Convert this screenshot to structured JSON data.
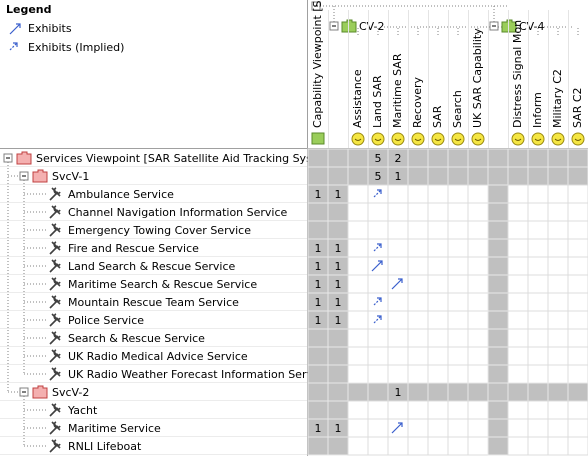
{
  "legend": {
    "title": "Legend",
    "items": [
      "Exhibits",
      "Exhibits (Implied)"
    ]
  },
  "columns": [
    {
      "label": "Capability Viewpoint [S"
    },
    {
      "group": "CV-2"
    },
    {
      "label": "Assistance"
    },
    {
      "label": "Land SAR"
    },
    {
      "label": "Maritime SAR"
    },
    {
      "label": "Recovery"
    },
    {
      "label": "SAR"
    },
    {
      "label": "Search"
    },
    {
      "label": "UK SAR Capability"
    },
    {
      "group": "CV-4"
    },
    {
      "label": "Distress Signal Mon"
    },
    {
      "label": "Inform"
    },
    {
      "label": "Military C2"
    },
    {
      "label": "SAR C2"
    }
  ],
  "rows": [
    {
      "label": "Services Viewpoint [SAR Satellite Aid Tracking System]",
      "level": 0,
      "cells": [
        null,
        null,
        null,
        5,
        2,
        null,
        null,
        null,
        null,
        null,
        null,
        null,
        null,
        null
      ]
    },
    {
      "label": "SvcV-1",
      "level": 1,
      "cells": [
        null,
        null,
        null,
        5,
        1,
        null,
        null,
        null,
        null,
        null,
        null,
        null,
        null,
        null
      ]
    },
    {
      "label": "Ambulance Service",
      "level": 2,
      "cells": [
        1,
        1,
        null,
        "Exhibits (Implied)",
        null,
        null,
        null,
        null,
        null,
        null,
        null,
        null,
        null,
        null
      ]
    },
    {
      "label": "Channel Navigation Information Service",
      "level": 2,
      "cells": [
        null,
        null,
        null,
        null,
        null,
        null,
        null,
        null,
        null,
        null,
        null,
        null,
        null,
        null
      ]
    },
    {
      "label": "Emergency Towing Cover Service",
      "level": 2,
      "cells": [
        null,
        null,
        null,
        null,
        null,
        null,
        null,
        null,
        null,
        null,
        null,
        null,
        null,
        null
      ]
    },
    {
      "label": "Fire and Rescue Service",
      "level": 2,
      "cells": [
        1,
        1,
        null,
        "Exhibits (Implied)",
        null,
        null,
        null,
        null,
        null,
        null,
        null,
        null,
        null,
        null
      ]
    },
    {
      "label": "Land Search & Rescue Service",
      "level": 2,
      "cells": [
        1,
        1,
        null,
        "Exhibits",
        null,
        null,
        null,
        null,
        null,
        null,
        null,
        null,
        null,
        null
      ]
    },
    {
      "label": "Maritime Search & Rescue Service",
      "level": 2,
      "cells": [
        1,
        1,
        null,
        null,
        "Exhibits",
        null,
        null,
        null,
        null,
        null,
        null,
        null,
        null,
        null
      ]
    },
    {
      "label": "Mountain Rescue Team Service",
      "level": 2,
      "cells": [
        1,
        1,
        null,
        "Exhibits (Implied)",
        null,
        null,
        null,
        null,
        null,
        null,
        null,
        null,
        null,
        null
      ]
    },
    {
      "label": "Police Service",
      "level": 2,
      "cells": [
        1,
        1,
        null,
        "Exhibits (Implied)",
        null,
        null,
        null,
        null,
        null,
        null,
        null,
        null,
        null,
        null
      ]
    },
    {
      "label": "Search & Rescue Service",
      "level": 2,
      "cells": [
        null,
        null,
        null,
        null,
        null,
        null,
        null,
        null,
        null,
        null,
        null,
        null,
        null,
        null
      ]
    },
    {
      "label": "UK Radio Medical Advice Service",
      "level": 2,
      "cells": [
        null,
        null,
        null,
        null,
        null,
        null,
        null,
        null,
        null,
        null,
        null,
        null,
        null,
        null
      ]
    },
    {
      "label": "UK Radio Weather Forecast Information Service",
      "level": 2,
      "cells": [
        null,
        null,
        null,
        null,
        null,
        null,
        null,
        null,
        null,
        null,
        null,
        null,
        null,
        null
      ]
    },
    {
      "label": "SvcV-2",
      "level": 1,
      "cells": [
        null,
        null,
        null,
        null,
        1,
        null,
        null,
        null,
        null,
        null,
        null,
        null,
        null,
        null
      ]
    },
    {
      "label": "Yacht",
      "level": 2,
      "cells": [
        null,
        null,
        null,
        null,
        null,
        null,
        null,
        null,
        null,
        null,
        null,
        null,
        null,
        null
      ]
    },
    {
      "label": "Maritime Service",
      "level": 2,
      "cells": [
        1,
        1,
        null,
        null,
        "Exhibits",
        null,
        null,
        null,
        null,
        null,
        null,
        null,
        null,
        null
      ]
    },
    {
      "label": "RNLI Lifeboat",
      "level": 2,
      "cells": [
        null,
        null,
        null,
        null,
        null,
        null,
        null,
        null,
        null,
        null,
        null,
        null,
        null,
        null
      ]
    }
  ]
}
